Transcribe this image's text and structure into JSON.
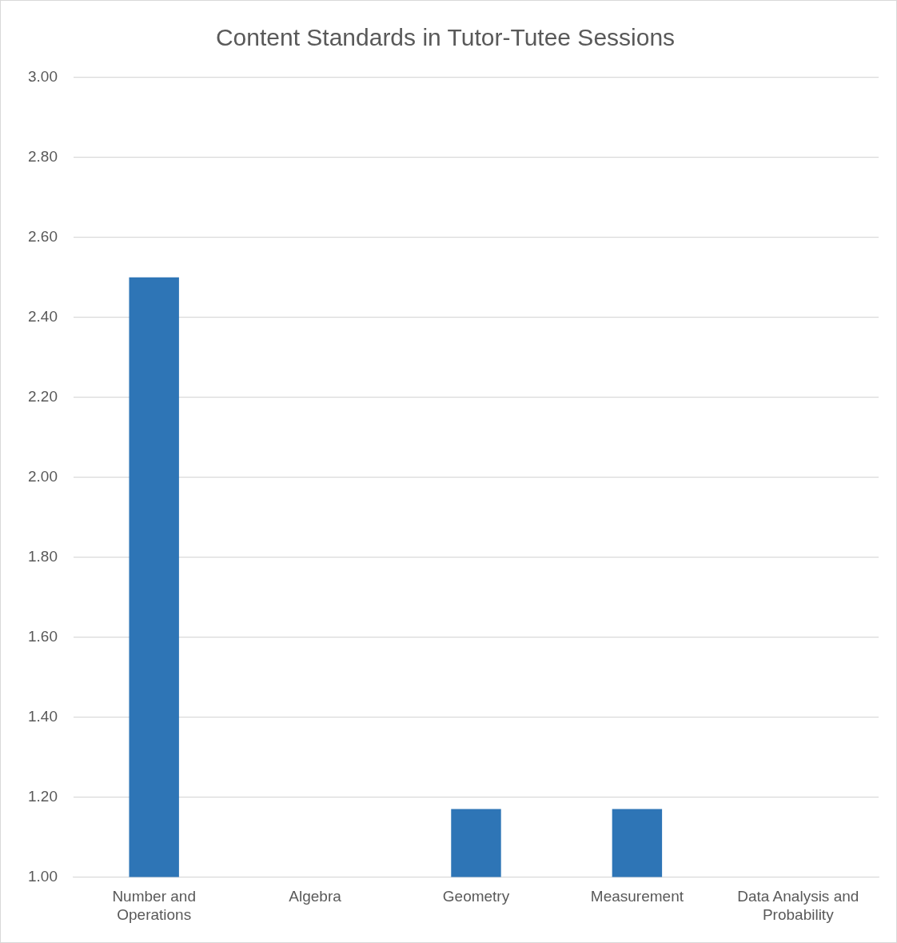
{
  "chart_data": {
    "type": "bar",
    "title": "Content Standards in Tutor-Tutee Sessions",
    "categories": [
      "Number and Operations",
      "Algebra",
      "Geometry",
      "Measurement",
      "Data Analysis and Probability"
    ],
    "values": [
      2.5,
      null,
      1.17,
      1.17,
      null
    ],
    "color": "#2e75b6",
    "ylim": [
      1.0,
      3.0
    ],
    "yticks": [
      {
        "value": 1.0,
        "label": "1.00"
      },
      {
        "value": 1.2,
        "label": "1.20"
      },
      {
        "value": 1.4,
        "label": "1.40"
      },
      {
        "value": 1.6,
        "label": "1.60"
      },
      {
        "value": 1.8,
        "label": "1.80"
      },
      {
        "value": 2.0,
        "label": "2.00"
      },
      {
        "value": 2.2,
        "label": "2.20"
      },
      {
        "value": 2.4,
        "label": "2.40"
      },
      {
        "value": 2.6,
        "label": "2.60"
      },
      {
        "value": 2.8,
        "label": "2.80"
      },
      {
        "value": 3.0,
        "label": "3.00"
      }
    ],
    "grid": "y"
  }
}
